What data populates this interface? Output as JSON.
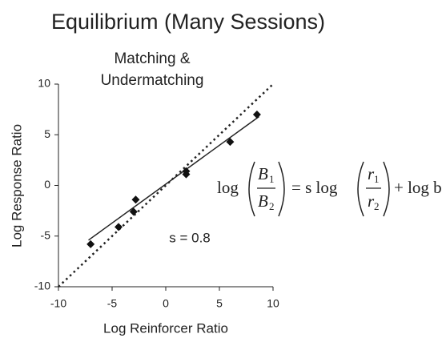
{
  "chart_data": {
    "type": "scatter",
    "title": "Equilibrium (Many Sessions)",
    "annotations": [
      "Matching &",
      "Undermatching",
      "s = 0.8"
    ],
    "x_label": "Log Reinforcer Ratio",
    "y_label": "Log Response Ratio",
    "x": [
      -7,
      -4.4,
      -3,
      -2.8,
      1.9,
      1.9,
      6,
      8.5
    ],
    "values": [
      -5.8,
      -4.1,
      -2.6,
      -1.4,
      1.1,
      1.4,
      4.3,
      7
    ],
    "color": "#111111",
    "xlim": [
      -10,
      10
    ],
    "xticks": [
      -10,
      -5,
      0,
      5,
      10
    ],
    "ylim": [
      -10,
      10
    ],
    "yticks": [
      -10,
      -5,
      0,
      5,
      10
    ],
    "lines": [
      {
        "style": "solid",
        "x": [
          -7.2,
          8.7
        ],
        "values": [
          -5.4,
          6.8
        ]
      },
      {
        "style": "dotted",
        "x": [
          -10,
          10
        ],
        "values": [
          -10,
          10
        ]
      }
    ],
    "equation": {
      "left": "log",
      "left_num": [
        "B",
        "1"
      ],
      "left_den": [
        "B",
        "2"
      ],
      "middle": "= s log",
      "right_num": [
        "r",
        "1"
      ],
      "right_den": [
        "r",
        "2"
      ],
      "right": "+ log b"
    }
  }
}
